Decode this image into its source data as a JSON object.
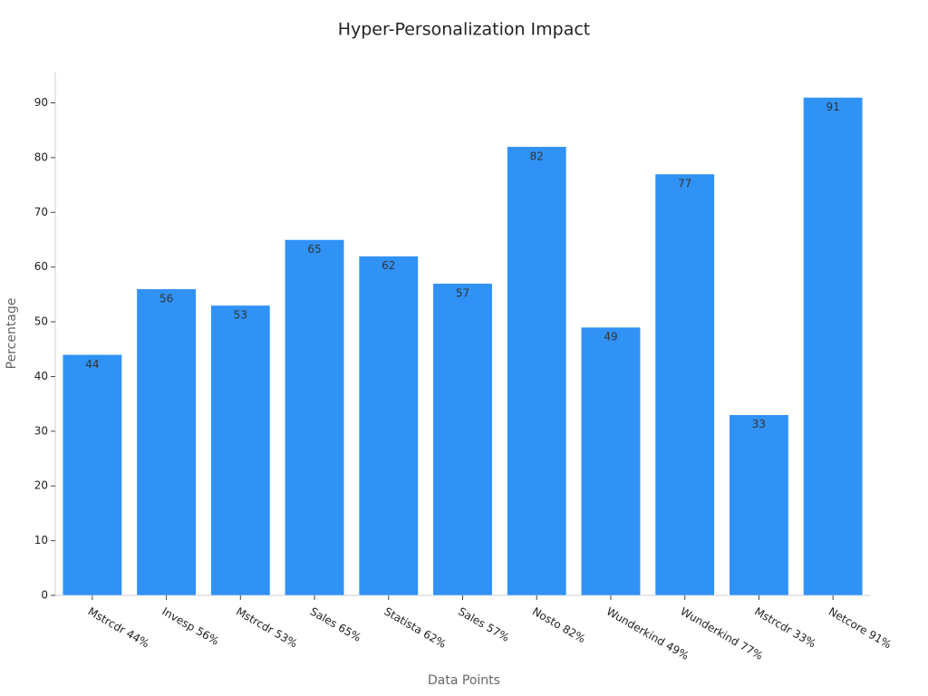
{
  "chart_data": {
    "type": "bar",
    "title": "Hyper-Personalization Impact",
    "x_label": "Data Points",
    "y_label": "Percentage",
    "categories": [
      "Mstrcdr 44%",
      "Invesp 56%",
      "Mstrcdr 53%",
      "Sales 65%",
      "Statista 62%",
      "Sales 57%",
      "Nosto 82%",
      "Wunderkind 49%",
      "Wunderkind 77%",
      "Mstrcdr 33%",
      "Netcore 91%"
    ],
    "values": [
      44,
      56,
      53,
      65,
      62,
      57,
      82,
      49,
      77,
      33,
      91
    ],
    "color": "#3092f5",
    "ylim": [
      0,
      95.55
    ],
    "yticks": [
      0,
      10,
      20,
      30,
      40,
      50,
      60,
      70,
      80,
      90
    ],
    "grid": false
  }
}
